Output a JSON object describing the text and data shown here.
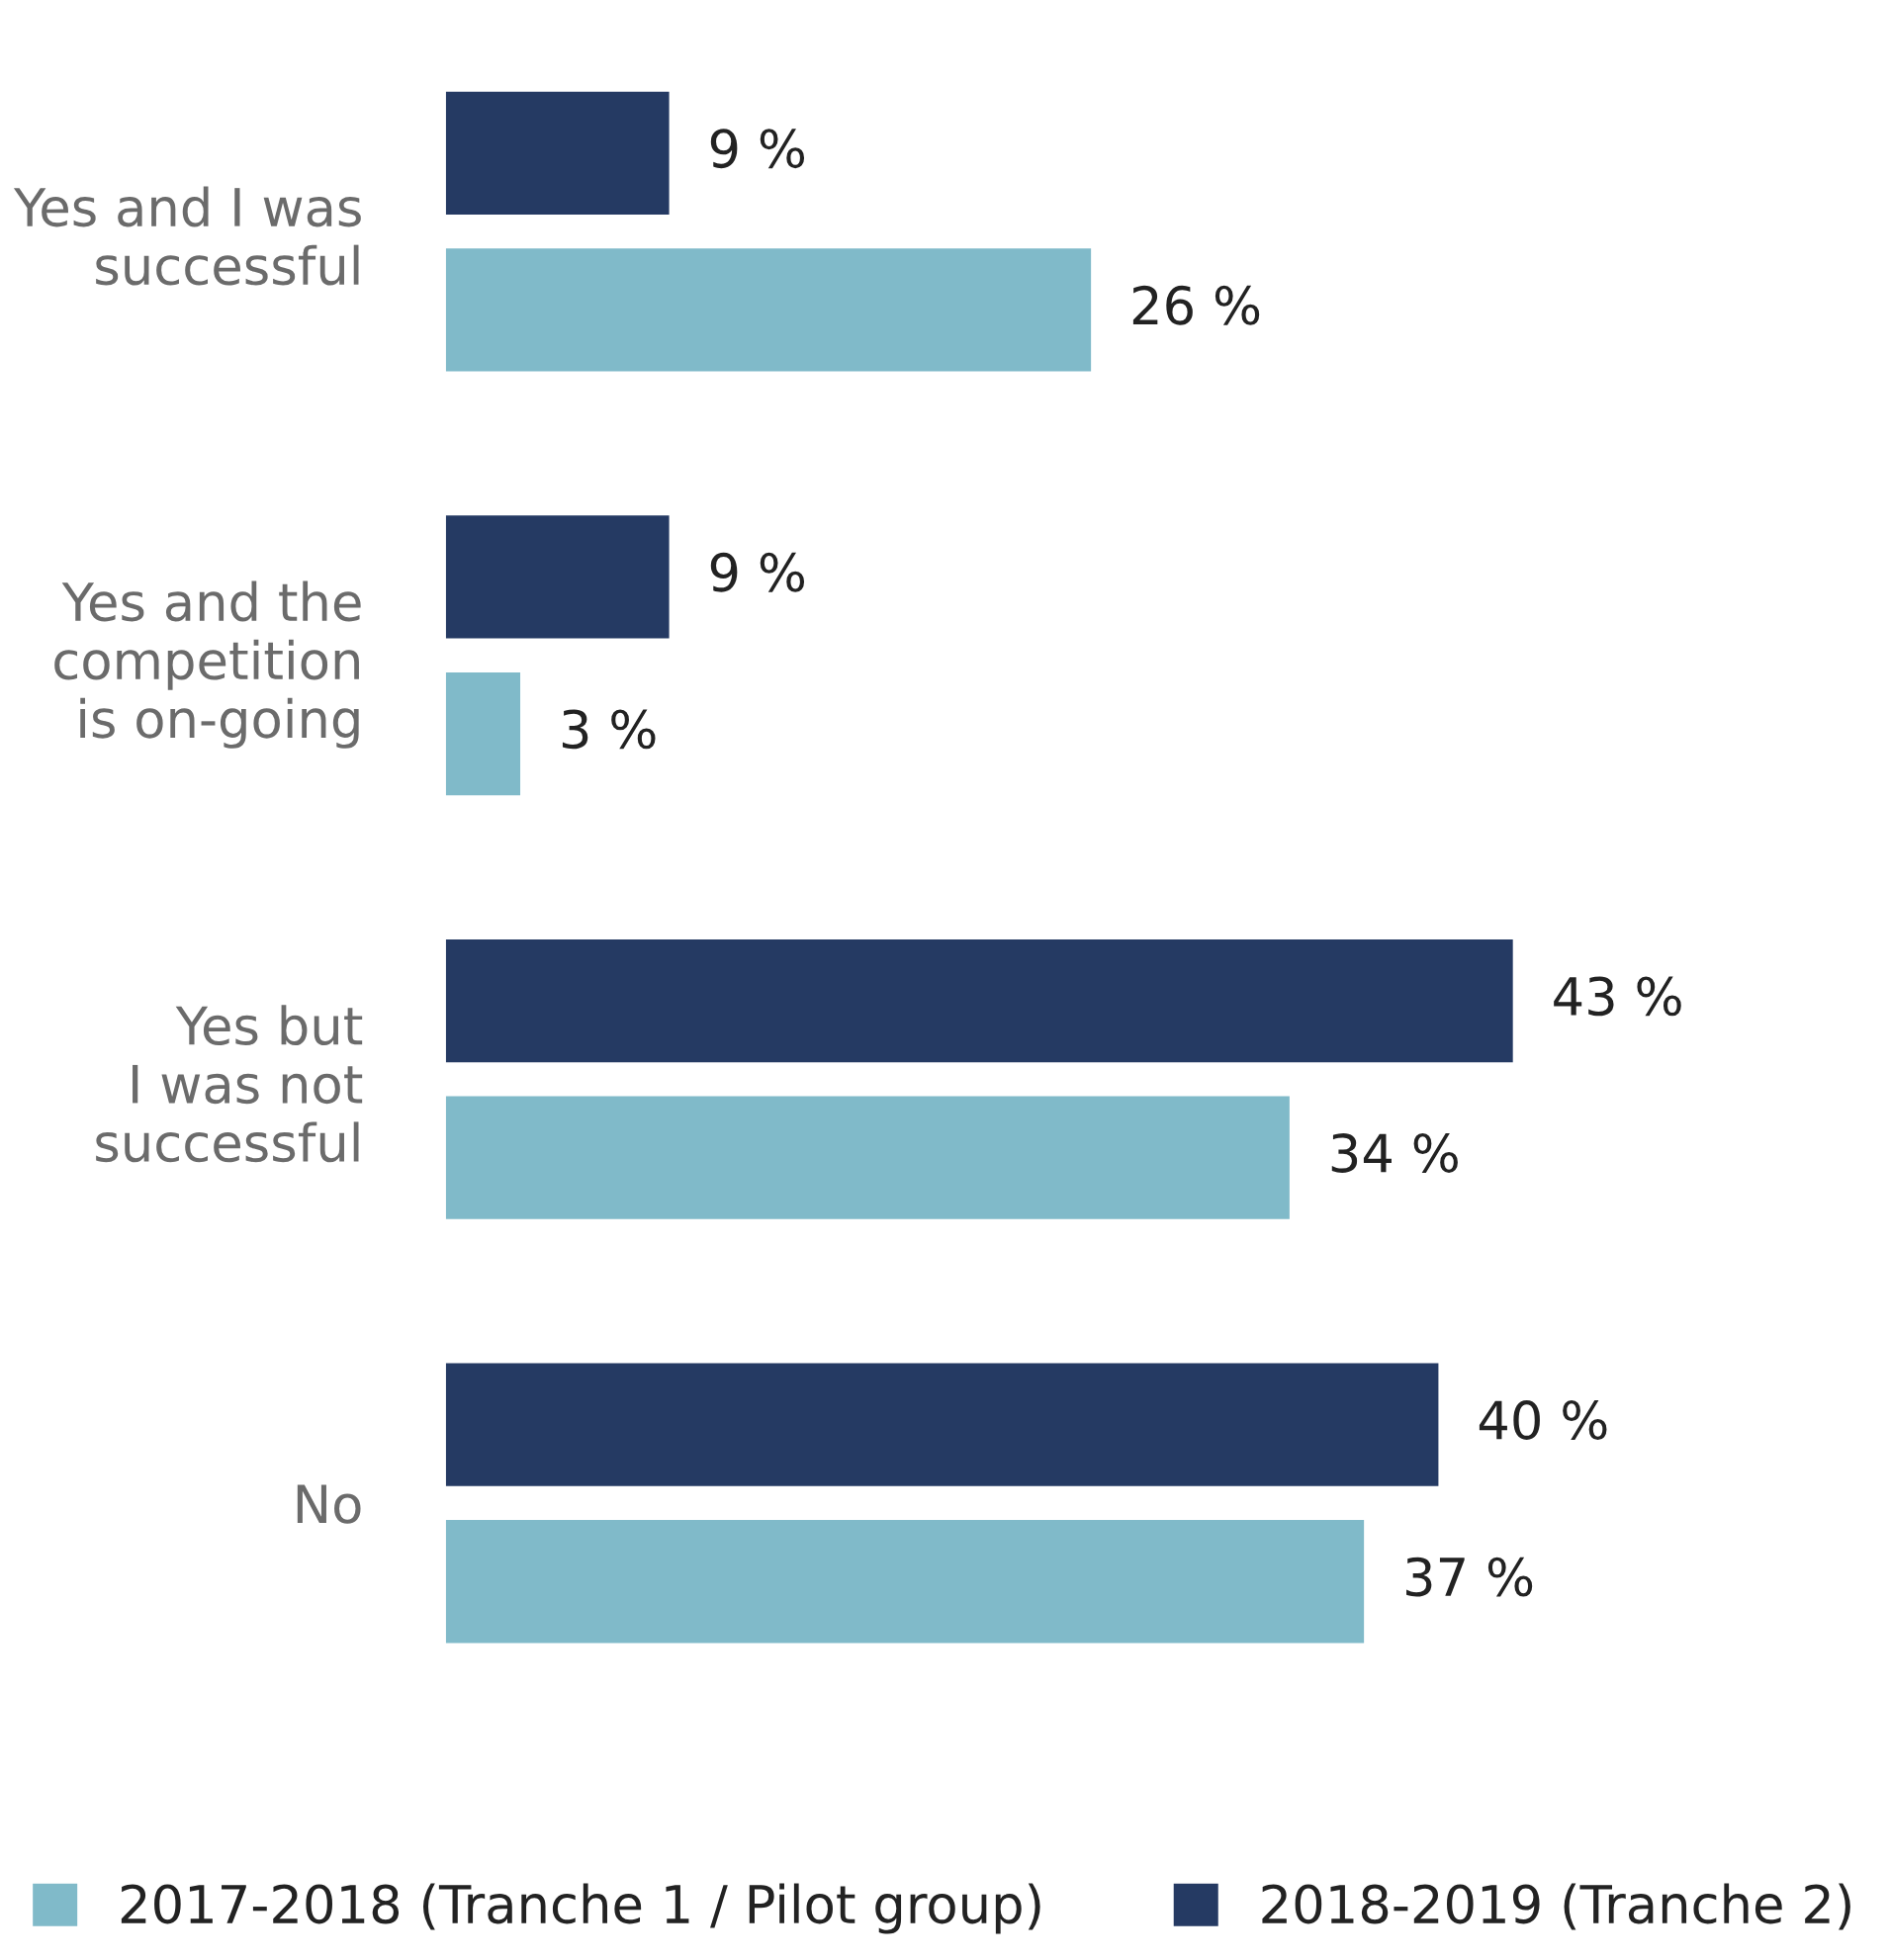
{
  "chart_data": {
    "type": "bar",
    "orientation": "horizontal",
    "categories": [
      "Yes and I was\nsuccessful",
      "Yes and the\ncompetition\nis on-going",
      "Yes but\nI was not\nsuccessful",
      "No"
    ],
    "series": [
      {
        "name": "2017-2018 (Tranche 1 / Pilot group)",
        "color": "#80bac9",
        "values": [
          26,
          3,
          34,
          37
        ],
        "value_labels": [
          "26 %",
          "3 %",
          "34 %",
          "37 %"
        ]
      },
      {
        "name": "2018-2019 (Tranche 2)",
        "color": "#253a63",
        "values": [
          9,
          9,
          43,
          40
        ],
        "value_labels": [
          "9 %",
          "9 %",
          "43 %",
          "40 %"
        ]
      }
    ],
    "legend": "bottom",
    "grid": false
  }
}
